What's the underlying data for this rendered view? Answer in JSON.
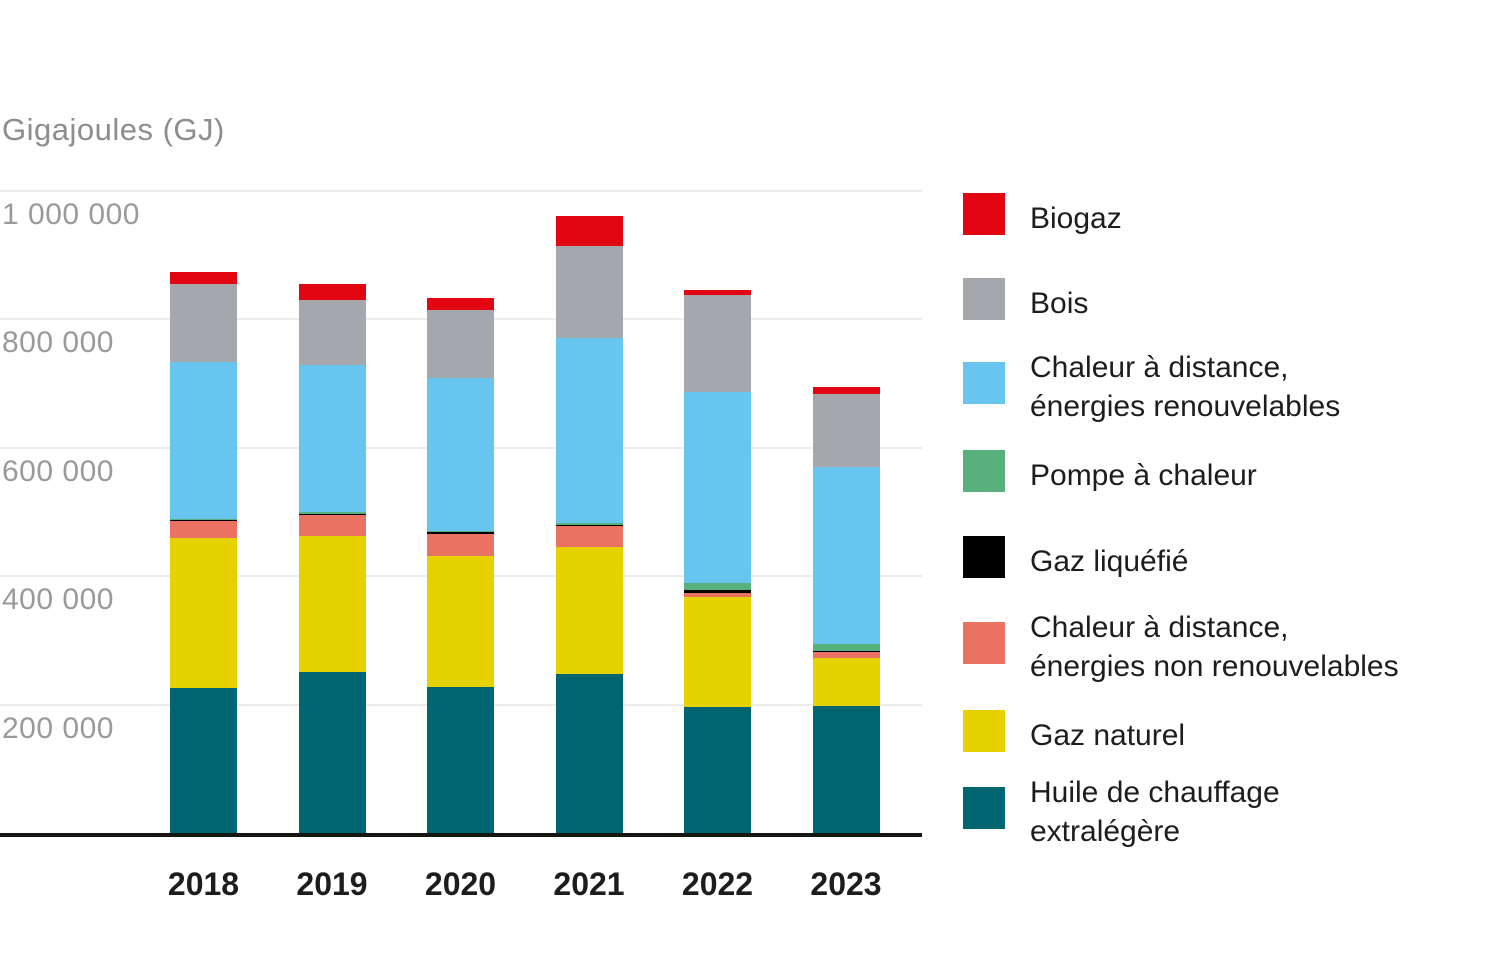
{
  "title": "Gigajoules (GJ)",
  "y_axis": {
    "ticks": [
      {
        "value": 1000000,
        "label": "1 000 000"
      },
      {
        "value": 800000,
        "label": "800 000"
      },
      {
        "value": 600000,
        "label": "600 000"
      },
      {
        "value": 400000,
        "label": "400 000"
      },
      {
        "value": 200000,
        "label": "200 000"
      }
    ]
  },
  "x_axis": {
    "labels": [
      "2018",
      "2019",
      "2020",
      "2021",
      "2022",
      "2023"
    ]
  },
  "legend": {
    "items": [
      {
        "name": "biogaz",
        "color": "#e20613",
        "lines": [
          "Biogaz"
        ]
      },
      {
        "name": "bois",
        "color": "#a4a8ad",
        "lines": [
          "Bois"
        ]
      },
      {
        "name": "chaleur-distance-renouvelables",
        "color": "#68c5f0",
        "lines": [
          "Chaleur à distance,",
          "énergies renouvelables"
        ]
      },
      {
        "name": "pompe-a-chaleur",
        "color": "#58b17c",
        "lines": [
          "Pompe à chaleur"
        ]
      },
      {
        "name": "gaz-liquefie",
        "color": "#000000",
        "lines": [
          "Gaz liquéfié"
        ]
      },
      {
        "name": "chaleur-distance-non-renouvelables",
        "color": "#ea7262",
        "lines": [
          "Chaleur à distance,",
          "énergies non renouvelables"
        ]
      },
      {
        "name": "gaz-naturel",
        "color": "#e6d200",
        "lines": [
          "Gaz naturel"
        ]
      },
      {
        "name": "huile-chauffage",
        "color": "#016571",
        "lines": [
          "Huile de chauffage",
          "extralégère"
        ]
      }
    ]
  },
  "chart_data": {
    "type": "bar",
    "stacked": true,
    "title": "Gigajoules (GJ)",
    "unit": "GJ",
    "categories": [
      "2018",
      "2019",
      "2020",
      "2021",
      "2022",
      "2023"
    ],
    "series_bottom_to_top": [
      {
        "name": "Huile de chauffage extralégère",
        "color": "#016571",
        "values": [
          226000,
          250000,
          227000,
          248000,
          196000,
          198000
        ]
      },
      {
        "name": "Gaz naturel",
        "color": "#e6d200",
        "values": [
          233000,
          213000,
          204000,
          197000,
          172000,
          75000
        ]
      },
      {
        "name": "Chaleur à distance, énergies non renouvelables",
        "color": "#ea7262",
        "values": [
          26000,
          32000,
          34000,
          33000,
          6000,
          8000
        ]
      },
      {
        "name": "Gaz liquéfié",
        "color": "#000000",
        "values": [
          2000,
          2000,
          3500,
          2000,
          4500,
          3000
        ]
      },
      {
        "name": "Pompe à chaleur",
        "color": "#58b17c",
        "values": [
          2000,
          2000,
          1500,
          2500,
          11000,
          9500
        ]
      },
      {
        "name": "Chaleur à distance, énergies renouvelables",
        "color": "#68c5f0",
        "values": [
          244000,
          230000,
          238000,
          288000,
          297000,
          276000
        ]
      },
      {
        "name": "Bois",
        "color": "#a4a8ad",
        "values": [
          121000,
          101000,
          106000,
          143000,
          151000,
          114000
        ]
      },
      {
        "name": "Biogaz",
        "color": "#e20613",
        "values": [
          19000,
          25000,
          19000,
          47000,
          8000,
          11000
        ]
      }
    ],
    "totals": [
      873000,
      855000,
      833000,
      960500,
      845500,
      694500
    ],
    "ylim": [
      0,
      1040000
    ],
    "ytick_interval": 200000,
    "grid": true,
    "legend_position": "right",
    "legend_order_top_to_bottom": [
      "Biogaz",
      "Bois",
      "Chaleur à distance, énergies renouvelables",
      "Pompe à chaleur",
      "Gaz liquéfié",
      "Chaleur à distance, énergies non renouvelables",
      "Gaz naturel",
      "Huile de chauffage extralégère"
    ]
  }
}
